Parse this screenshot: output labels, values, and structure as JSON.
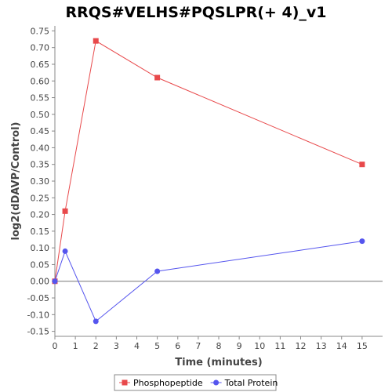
{
  "chart_data": {
    "type": "line",
    "title": "RRQS#VELHS#PQSLPR(+ 4)_v1",
    "xlabel": "Time (minutes)",
    "ylabel": "log2(dDAVP/Control)",
    "xlim": [
      0,
      16
    ],
    "ylim": [
      -0.165,
      0.765
    ],
    "x_ticks": [
      0,
      1,
      2,
      3,
      4,
      5,
      6,
      7,
      8,
      9,
      10,
      11,
      12,
      13,
      14,
      15
    ],
    "y_ticks": [
      -0.15,
      -0.1,
      -0.05,
      0.0,
      0.05,
      0.1,
      0.15,
      0.2,
      0.25,
      0.3,
      0.35,
      0.4,
      0.45,
      0.5,
      0.55,
      0.6,
      0.65,
      0.7,
      0.75
    ],
    "grid": false,
    "zero_line": true,
    "legend_position": "bottom",
    "series": [
      {
        "name": "Phosphopeptide",
        "color": "#e8494b",
        "marker": "square",
        "points": [
          {
            "x": 0,
            "y": 0.0
          },
          {
            "x": 0.5,
            "y": 0.21
          },
          {
            "x": 2,
            "y": 0.72
          },
          {
            "x": 5,
            "y": 0.61
          },
          {
            "x": 15,
            "y": 0.35
          }
        ]
      },
      {
        "name": "Total Protein",
        "color": "#5555ee",
        "marker": "circle",
        "points": [
          {
            "x": 0,
            "y": 0.0
          },
          {
            "x": 0.5,
            "y": 0.09
          },
          {
            "x": 2,
            "y": -0.12
          },
          {
            "x": 5,
            "y": 0.03
          },
          {
            "x": 15,
            "y": 0.12
          }
        ]
      }
    ]
  }
}
